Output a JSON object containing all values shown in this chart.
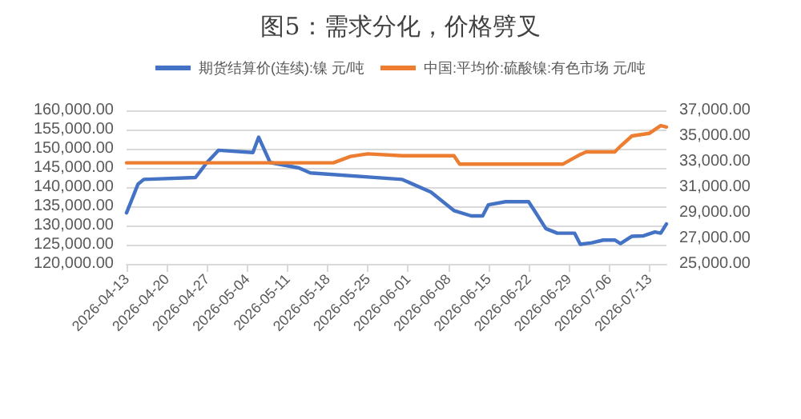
{
  "chart_data": {
    "type": "line",
    "title": "图5：需求分化，价格劈叉",
    "legend": "top",
    "grid": "y",
    "marker": "none",
    "line_style": "solid",
    "xlim": [
      "2026-04-13",
      "2026-07-16"
    ],
    "xticks": [
      {
        "value": "2026-04-13",
        "label": "2026-04-13"
      },
      {
        "value": "2026-04-20",
        "label": "2026-04-20"
      },
      {
        "value": "2026-04-27",
        "label": "2026-04-27"
      },
      {
        "value": "2026-05-04",
        "label": "2026-05-04"
      },
      {
        "value": "2026-05-11",
        "label": "2026-05-11"
      },
      {
        "value": "2026-05-18",
        "label": "2026-05-18"
      },
      {
        "value": "2026-05-25",
        "label": "2026-05-25"
      },
      {
        "value": "2026-06-01",
        "label": "2026-06-01"
      },
      {
        "value": "2026-06-08",
        "label": "2026-06-08"
      },
      {
        "value": "2026-06-15",
        "label": "2026-06-15"
      },
      {
        "value": "2026-06-22",
        "label": "2026-06-22"
      },
      {
        "value": "2026-06-29",
        "label": "2026-06-29"
      },
      {
        "value": "2026-07-06",
        "label": "2026-07-06"
      },
      {
        "value": "2026-07-13",
        "label": "2026-07-13"
      }
    ],
    "ylim": [
      120000,
      160000
    ],
    "yticks": [
      {
        "value": 120000,
        "label": "120,000.00"
      },
      {
        "value": 125000,
        "label": "125,000.00"
      },
      {
        "value": 130000,
        "label": "130,000.00"
      },
      {
        "value": 135000,
        "label": "135,000.00"
      },
      {
        "value": 140000,
        "label": "140,000.00"
      },
      {
        "value": 145000,
        "label": "145,000.00"
      },
      {
        "value": 150000,
        "label": "150,000.00"
      },
      {
        "value": 155000,
        "label": "155,000.00"
      },
      {
        "value": 160000,
        "label": "160,000.00"
      }
    ],
    "y2lim": [
      25000,
      37000
    ],
    "y2ticks": [
      {
        "value": 25000,
        "label": "25,000.00"
      },
      {
        "value": 27000,
        "label": "27,000.00"
      },
      {
        "value": 29000,
        "label": "29,000.00"
      },
      {
        "value": 31000,
        "label": "31,000.00"
      },
      {
        "value": 33000,
        "label": "33,000.00"
      },
      {
        "value": 35000,
        "label": "35,000.00"
      },
      {
        "value": 37000,
        "label": "37,000.00"
      }
    ],
    "series": [
      {
        "name": "期货结算价(连续):镍 元/吨",
        "color": "#4472c4",
        "x": [
          "2026-04-13",
          "2026-04-15",
          "2026-04-16",
          "2026-04-25",
          "2026-04-27",
          "2026-04-29",
          "2026-05-05",
          "2026-05-06",
          "2026-05-08",
          "2026-05-13",
          "2026-05-15",
          "2026-05-31",
          "2026-06-05",
          "2026-06-09",
          "2026-06-12",
          "2026-06-14",
          "2026-06-15",
          "2026-06-18",
          "2026-06-22",
          "2026-06-23",
          "2026-06-25",
          "2026-06-27",
          "2026-06-30",
          "2026-07-01",
          "2026-07-03",
          "2026-07-05",
          "2026-07-07",
          "2026-07-08",
          "2026-07-10",
          "2026-07-12",
          "2026-07-14",
          "2026-07-15",
          "2026-07-16"
        ],
        "values": [
          133300,
          140800,
          142000,
          142500,
          146400,
          149600,
          149000,
          153000,
          146400,
          145000,
          143700,
          142000,
          138700,
          133900,
          132500,
          132500,
          135400,
          136200,
          136200,
          133900,
          129200,
          128000,
          128000,
          125100,
          125500,
          126200,
          126200,
          125300,
          127200,
          127300,
          128300,
          128000,
          130400
        ]
      },
      {
        "name": "中国:平均价:硫酸镍:有色市场 元/吨",
        "color": "#ed7d31",
        "axis": "y2",
        "x": [
          "2026-04-13",
          "2026-05-19",
          "2026-05-22",
          "2026-05-25",
          "2026-05-31",
          "2026-06-09",
          "2026-06-10",
          "2026-06-28",
          "2026-07-01",
          "2026-07-02",
          "2026-07-07",
          "2026-07-08",
          "2026-07-10",
          "2026-07-13",
          "2026-07-15",
          "2026-07-16"
        ],
        "values": [
          32900,
          32900,
          33400,
          33600,
          33450,
          33450,
          32800,
          32800,
          33550,
          33750,
          33750,
          34200,
          35000,
          35200,
          35800,
          35700
        ]
      }
    ]
  }
}
